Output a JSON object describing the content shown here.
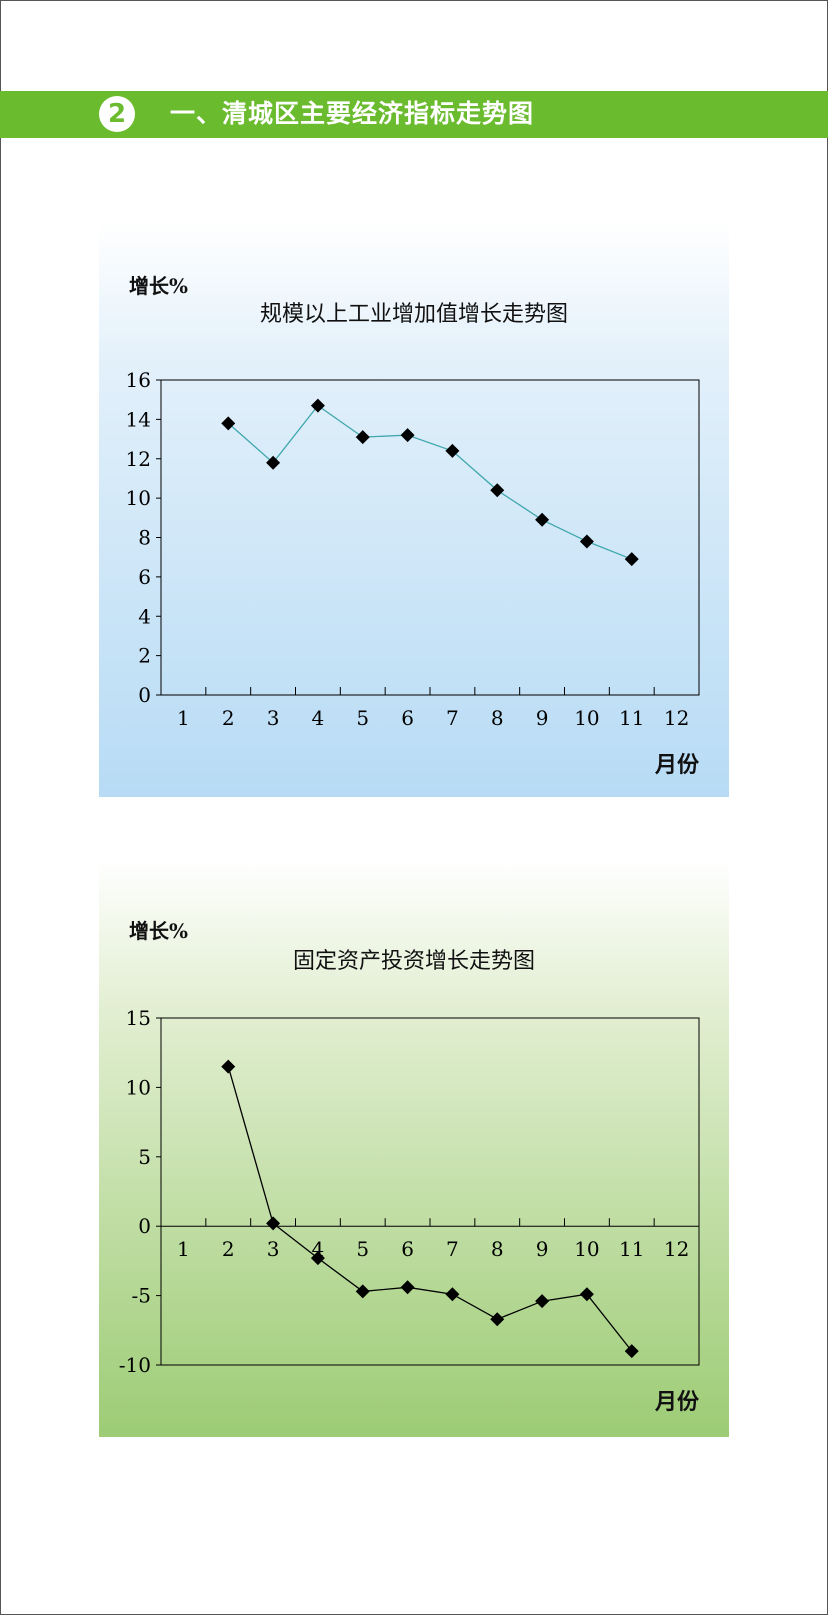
{
  "header": {
    "badge": "2",
    "title": "一、清城区主要经济指标走势图"
  },
  "charts": [
    {
      "ylabel": "增长%",
      "title": "规模以上工业增加值增长走势图",
      "xlabel": "月份"
    },
    {
      "ylabel": "增长%",
      "title": "固定资产投资增长走势图",
      "xlabel": "月份"
    }
  ],
  "chart_data": [
    {
      "type": "line",
      "title": "规模以上工业增加值增长走势图",
      "xlabel": "月份",
      "ylabel": "增长%",
      "x_ticks": [
        "1",
        "2",
        "3",
        "4",
        "5",
        "6",
        "7",
        "8",
        "9",
        "10",
        "11",
        "12"
      ],
      "ylim": [
        0,
        16
      ],
      "y_ticks": [
        0,
        2,
        4,
        6,
        8,
        10,
        12,
        14,
        16
      ],
      "x": [
        2,
        3,
        4,
        5,
        6,
        7,
        8,
        9,
        10,
        11
      ],
      "values": [
        13.8,
        11.8,
        14.7,
        13.1,
        13.2,
        12.4,
        10.4,
        8.9,
        7.8,
        6.9
      ],
      "line_color": "#3fa7ad",
      "marker": "diamond",
      "grid": false
    },
    {
      "type": "line",
      "title": "固定资产投资增长走势图",
      "xlabel": "月份",
      "ylabel": "增长%",
      "x_ticks": [
        "1",
        "2",
        "3",
        "4",
        "5",
        "6",
        "7",
        "8",
        "9",
        "10",
        "11",
        "12"
      ],
      "ylim": [
        -10,
        15
      ],
      "y_ticks": [
        -10,
        -5,
        0,
        5,
        10,
        15
      ],
      "x": [
        2,
        3,
        4,
        5,
        6,
        7,
        8,
        9,
        10,
        11
      ],
      "values": [
        11.5,
        0.2,
        -2.3,
        -4.7,
        -4.4,
        -4.9,
        -6.7,
        -5.4,
        -4.9,
        -9.0
      ],
      "line_color": "#000000",
      "marker": "diamond",
      "grid": false
    }
  ]
}
